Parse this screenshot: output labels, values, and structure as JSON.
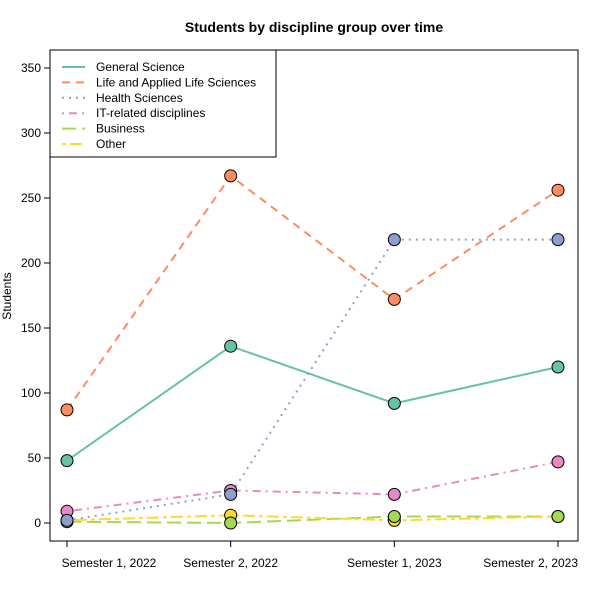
{
  "chart_data": {
    "type": "line",
    "title": "Students by discipline group over time",
    "xlabel": "",
    "ylabel": "Students",
    "categories": [
      "Semester 1, 2022",
      "Semester 2, 2022",
      "Semester 1, 2023",
      "Semester 2, 2023"
    ],
    "ylim": [
      -14,
      364
    ],
    "yticks": [
      0,
      50,
      100,
      150,
      200,
      250,
      300,
      350
    ],
    "grid": false,
    "legend_position": "top-left",
    "series": [
      {
        "name": "General Science",
        "color": "#66C2A5",
        "dash": "solid",
        "values": [
          48,
          136,
          92,
          120
        ]
      },
      {
        "name": "Life and Applied Life Sciences",
        "color": "#FC8D62",
        "dash": "dashed",
        "values": [
          87,
          267,
          172,
          256
        ]
      },
      {
        "name": "Health Sciences",
        "color": "#8DA0CB",
        "dash": "dotted",
        "values": [
          2,
          22,
          218,
          218
        ]
      },
      {
        "name": "IT-related disciplines",
        "color": "#E78AC3",
        "dash": "dotdash",
        "values": [
          9,
          25,
          22,
          47
        ]
      },
      {
        "name": "Business",
        "color": "#A6D854",
        "dash": "longdash",
        "values": [
          1,
          0,
          5,
          5
        ]
      },
      {
        "name": "Other",
        "color": "#FFD92F",
        "dash": "twodash",
        "values": [
          2,
          6,
          2,
          5
        ]
      }
    ]
  }
}
